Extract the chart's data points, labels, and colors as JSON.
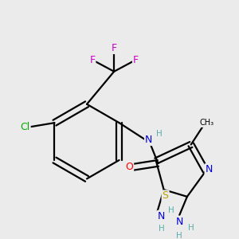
{
  "bg_color": "#ebebeb",
  "bond_color": "#000000",
  "bond_width": 1.6,
  "atom_colors": {
    "N": "#0000dd",
    "S": "#b8a000",
    "O": "#ff0000",
    "Cl": "#00aa00",
    "F": "#cc00cc",
    "C": "#000000",
    "H": "#5aadad"
  },
  "font_size": 9.0,
  "font_size_small": 7.5
}
